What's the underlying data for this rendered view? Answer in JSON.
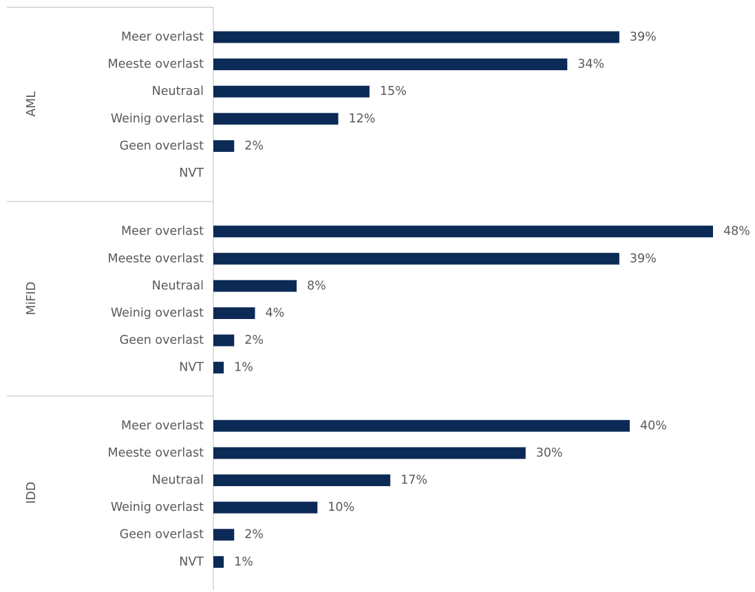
{
  "chart_data": {
    "type": "bar",
    "orientation": "horizontal",
    "bar_color": "#0c2a56",
    "text_color": "#595959",
    "axis_color": "#bfbfbf",
    "value_suffix": "%",
    "xlim": [
      0,
      48
    ],
    "grid": false,
    "legend": "none",
    "groups": [
      {
        "name": "AML",
        "categories": [
          "Meer overlast",
          "Meeste overlast",
          "Neutraal",
          "Weinig overlast",
          "Geen overlast",
          "NVT"
        ],
        "values": [
          39,
          34,
          15,
          12,
          2,
          null
        ],
        "labels": [
          "39%",
          "34%",
          "15%",
          "12%",
          "2%",
          ""
        ]
      },
      {
        "name": "MiFID",
        "categories": [
          "Meer overlast",
          "Meeste overlast",
          "Neutraal",
          "Weinig overlast",
          "Geen overlast",
          "NVT"
        ],
        "values": [
          48,
          39,
          8,
          4,
          2,
          1
        ],
        "labels": [
          "48%",
          "39%",
          "8%",
          "4%",
          "2%",
          "1%"
        ]
      },
      {
        "name": "IDD",
        "categories": [
          "Meer overlast",
          "Meeste overlast",
          "Neutraal",
          "Weinig overlast",
          "Geen overlast",
          "NVT"
        ],
        "values": [
          40,
          30,
          17,
          10,
          2,
          1
        ],
        "labels": [
          "40%",
          "30%",
          "17%",
          "10%",
          "2%",
          "1%"
        ]
      }
    ]
  }
}
